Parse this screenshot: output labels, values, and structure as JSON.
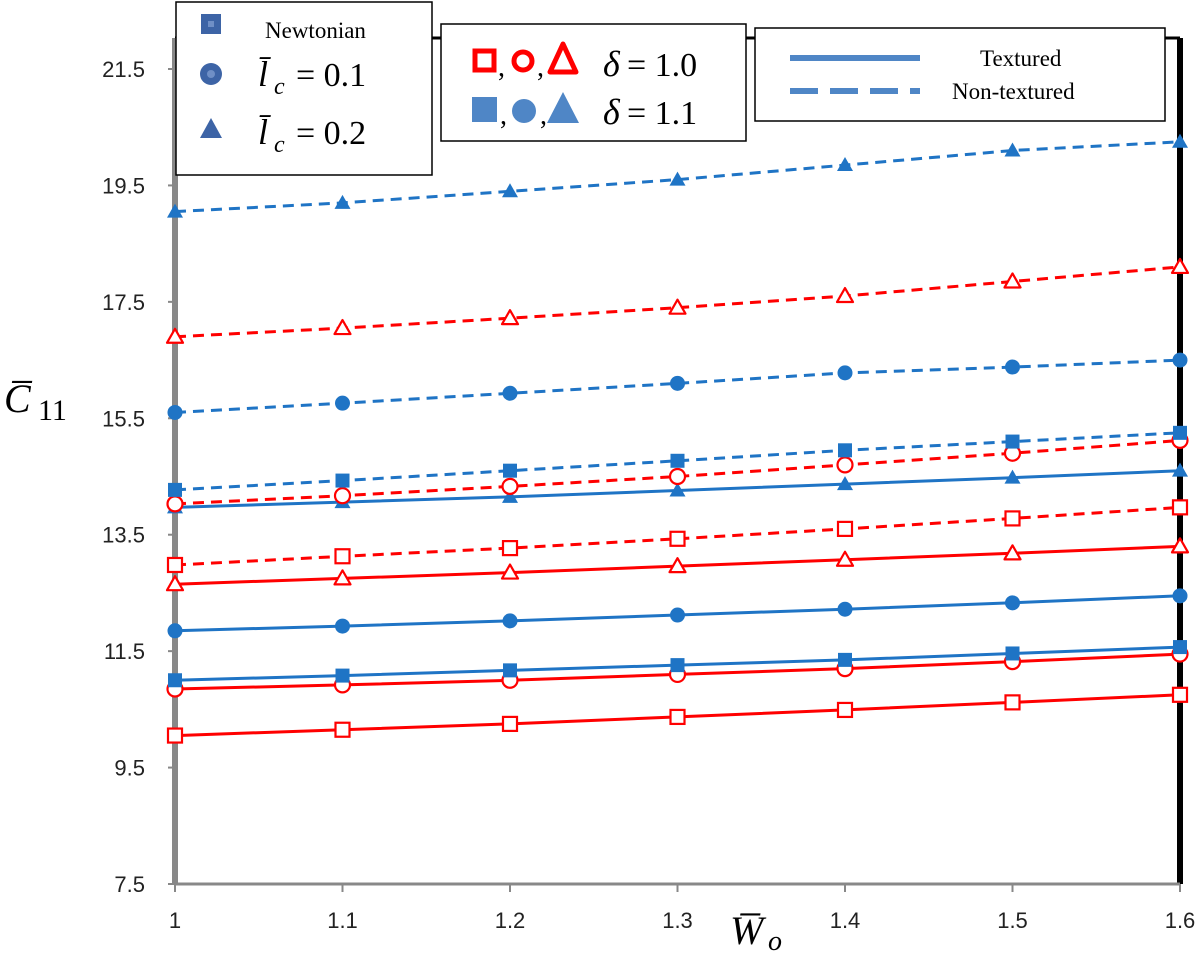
{
  "chart_data": {
    "type": "line",
    "title": "",
    "xlabel": "W̅",
    "xlabel_sub": "o",
    "ylabel": "C̅",
    "ylabel_sub": "11",
    "xlim": [
      1.0,
      1.6
    ],
    "ylim": [
      7.5,
      22.0
    ],
    "x_ticks": [
      "1",
      "1.1",
      "1.2",
      "1.3",
      "1.4",
      "1.5",
      "1.6"
    ],
    "y_ticks": [
      "7.5",
      "9.5",
      "11.5",
      "13.5",
      "15.5",
      "17.5",
      "19.5",
      "21.5"
    ],
    "grid": false,
    "x": [
      1.0,
      1.1,
      1.2,
      1.3,
      1.4,
      1.5,
      1.6
    ],
    "series": [
      {
        "name": "Newtonian, δ=1.0, Textured",
        "marker": "square",
        "filled": false,
        "color": "#ff0000",
        "dash": false,
        "values": [
          10.05,
          10.15,
          10.25,
          10.37,
          10.49,
          10.62,
          10.75
        ]
      },
      {
        "name": "l̄c=0.1, δ=1.0, Textured",
        "marker": "circle",
        "filled": false,
        "color": "#ff0000",
        "dash": false,
        "values": [
          10.85,
          10.92,
          11.0,
          11.1,
          11.2,
          11.32,
          11.45
        ]
      },
      {
        "name": "Newtonian, δ=1.1, Textured",
        "marker": "square",
        "filled": true,
        "color": "#1f74c5",
        "dash": false,
        "values": [
          11.0,
          11.08,
          11.17,
          11.26,
          11.35,
          11.46,
          11.57
        ]
      },
      {
        "name": "l̄c=0.1, δ=1.1, Textured",
        "marker": "circle",
        "filled": true,
        "color": "#1f74c5",
        "dash": false,
        "values": [
          11.85,
          11.93,
          12.02,
          12.12,
          12.22,
          12.33,
          12.45
        ]
      },
      {
        "name": "l̄c=0.2, δ=1.0, Textured",
        "marker": "triangle",
        "filled": false,
        "color": "#ff0000",
        "dash": false,
        "values": [
          12.65,
          12.75,
          12.85,
          12.96,
          13.07,
          13.18,
          13.3
        ]
      },
      {
        "name": "Newtonian, δ=1.0, Non-textured",
        "marker": "square",
        "filled": false,
        "color": "#ff0000",
        "dash": true,
        "values": [
          12.98,
          13.13,
          13.27,
          13.43,
          13.6,
          13.78,
          13.97
        ]
      },
      {
        "name": "l̄c=0.2, δ=1.1, Textured",
        "marker": "triangle",
        "filled": true,
        "color": "#1f74c5",
        "dash": false,
        "values": [
          13.97,
          14.06,
          14.15,
          14.26,
          14.37,
          14.48,
          14.6
        ]
      },
      {
        "name": "l̄c=0.1, δ=1.0, Non-textured",
        "marker": "circle",
        "filled": false,
        "color": "#ff0000",
        "dash": true,
        "values": [
          14.03,
          14.17,
          14.33,
          14.5,
          14.7,
          14.9,
          15.12
        ]
      },
      {
        "name": "Newtonian, δ=1.1, Non-textured",
        "marker": "square",
        "filled": true,
        "color": "#1f74c5",
        "dash": true,
        "values": [
          14.27,
          14.43,
          14.6,
          14.77,
          14.95,
          15.1,
          15.25
        ]
      },
      {
        "name": "l̄c=0.1, δ=1.1, Non-textured",
        "marker": "circle",
        "filled": true,
        "color": "#1f74c5",
        "dash": true,
        "values": [
          15.6,
          15.76,
          15.93,
          16.1,
          16.28,
          16.38,
          16.5
        ]
      },
      {
        "name": "l̄c=0.2, δ=1.0, Non-textured",
        "marker": "triangle",
        "filled": false,
        "color": "#ff0000",
        "dash": true,
        "values": [
          16.9,
          17.05,
          17.22,
          17.4,
          17.6,
          17.85,
          18.1
        ]
      },
      {
        "name": "l̄c=0.2, δ=1.1, Non-textured",
        "marker": "triangle",
        "filled": true,
        "color": "#1f74c5",
        "dash": true,
        "values": [
          19.05,
          19.2,
          19.4,
          19.6,
          19.85,
          20.1,
          20.25
        ]
      }
    ],
    "legends": {
      "shape": {
        "items": [
          {
            "marker": "square",
            "label": "Newtonian",
            "math": false
          },
          {
            "marker": "circle",
            "label": "l̄c = 0.1",
            "sym": "l̄",
            "sub": "c",
            "value": "= 0.1",
            "math": true
          },
          {
            "marker": "triangle",
            "label": "l̄c = 0.2",
            "sym": "l̄",
            "sub": "c",
            "value": "= 0.2",
            "math": true
          }
        ]
      },
      "delta": {
        "items": [
          {
            "filled": false,
            "sep1": ",",
            "sep2": ",",
            "sym": "δ",
            "value": "= 1.0",
            "color": "#ff0000"
          },
          {
            "filled": true,
            "sep1": ",",
            "sep2": ",",
            "sym": "δ",
            "value": "= 1.1",
            "color": "#4f86c6"
          }
        ]
      },
      "line": {
        "items": [
          {
            "style": "solid",
            "label": "Textured"
          },
          {
            "style": "dashed",
            "label": "Non-textured"
          }
        ]
      }
    },
    "colors": {
      "red": "#ff0000",
      "blue": "#1f74c5",
      "legend_blue": "#3d64a6"
    }
  }
}
